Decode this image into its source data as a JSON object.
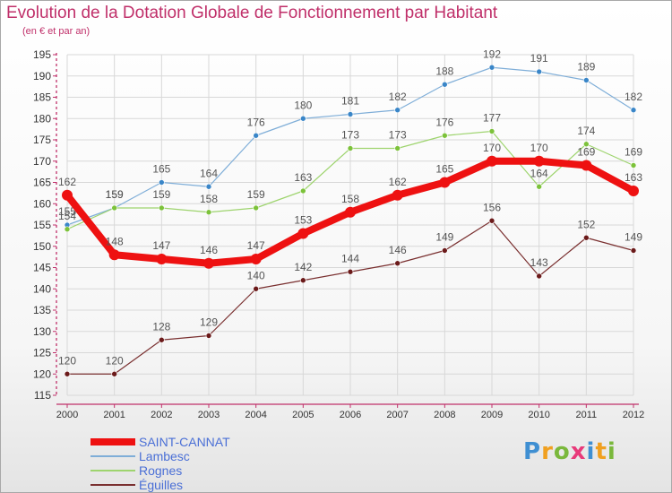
{
  "title": "Evolution de la Dotation Globale de Fonctionnement par Habitant",
  "subtitle": "(en € et par an)",
  "logo_letters": [
    {
      "ch": "P",
      "color": "#3f8fd2"
    },
    {
      "ch": "r",
      "color": "#f0a020"
    },
    {
      "ch": "o",
      "color": "#7ab83c"
    },
    {
      "ch": "x",
      "color": "#e83a7a"
    },
    {
      "ch": "i",
      "color": "#3f8fd2"
    },
    {
      "ch": "t",
      "color": "#f0a020"
    },
    {
      "ch": "i",
      "color": "#7ab83c"
    }
  ],
  "colors": {
    "axis": "#c0306a",
    "grid": "#d8d8d8",
    "value_label": "#555555"
  },
  "chart_data": {
    "type": "line",
    "title": "Evolution de la Dotation Globale de Fonctionnement par Habitant",
    "ylabel": "(en € et par an)",
    "xlabel": "",
    "ylim": [
      115,
      195
    ],
    "yticks": [
      115,
      120,
      125,
      130,
      135,
      140,
      145,
      150,
      155,
      160,
      165,
      170,
      175,
      180,
      185,
      190,
      195
    ],
    "x": [
      "2000",
      "2001",
      "2002",
      "2003",
      "2004",
      "2005",
      "2006",
      "2007",
      "2008",
      "2009",
      "2010",
      "2011",
      "2012"
    ],
    "grid": true,
    "legend_position": "bottom-left",
    "series": [
      {
        "name": "Lambesc",
        "color": "#3a86c8",
        "line": "#7faed8",
        "width": 1.2,
        "marker": 3,
        "values": [
          155,
          159,
          165,
          164,
          176,
          180,
          181,
          182,
          188,
          192,
          191,
          189,
          182
        ]
      },
      {
        "name": "Rognes",
        "color": "#7cc23a",
        "line": "#9ed46e",
        "width": 1.2,
        "marker": 3,
        "values": [
          154,
          159,
          159,
          158,
          159,
          163,
          173,
          173,
          176,
          177,
          164,
          174,
          169
        ]
      },
      {
        "name": "Éguilles",
        "color": "#6b1a1a",
        "line": "#7a3030",
        "width": 1.2,
        "marker": 3,
        "values": [
          120,
          120,
          128,
          129,
          140,
          142,
          144,
          146,
          149,
          156,
          143,
          152,
          149
        ]
      },
      {
        "name": "SAINT-CANNAT",
        "color": "#ee1111",
        "line": "#ee1111",
        "width": 8,
        "marker": 6,
        "values": [
          162,
          148,
          147,
          146,
          147,
          153,
          158,
          162,
          165,
          170,
          170,
          169,
          163
        ]
      }
    ],
    "legend_order": [
      "SAINT-CANNAT",
      "Lambesc",
      "Rognes",
      "Éguilles"
    ]
  }
}
